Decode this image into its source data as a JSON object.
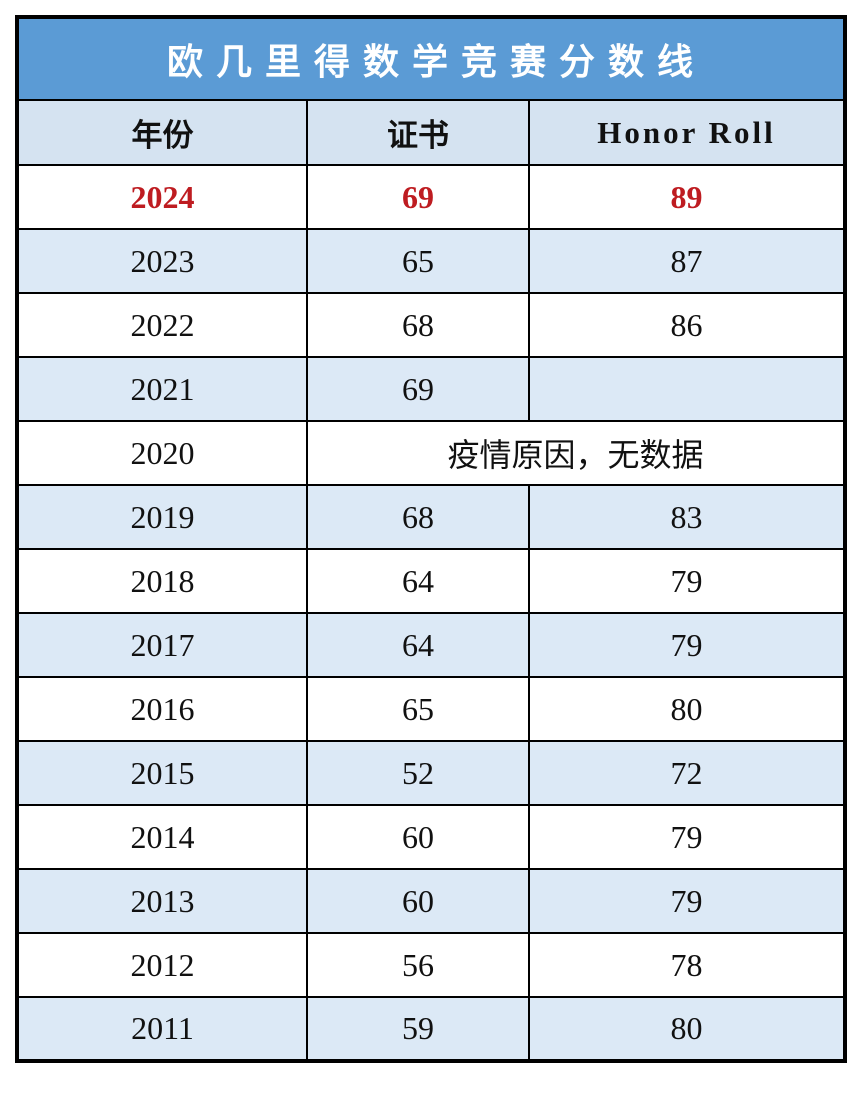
{
  "table": {
    "title": "欧 几 里 得 数 学 竞 赛 分 数 线",
    "columns": [
      "年份",
      "证书",
      "Honor Roll"
    ],
    "rows": [
      {
        "year": "2024",
        "certificate": "69",
        "honor_roll": "89",
        "highlight": true
      },
      {
        "year": "2023",
        "certificate": "65",
        "honor_roll": "87"
      },
      {
        "year": "2022",
        "certificate": "68",
        "honor_roll": "86"
      },
      {
        "year": "2021",
        "certificate": "69",
        "honor_roll": ""
      },
      {
        "year": "2020",
        "merged_note": "疫情原因，无数据"
      },
      {
        "year": "2019",
        "certificate": "68",
        "honor_roll": "83"
      },
      {
        "year": "2018",
        "certificate": "64",
        "honor_roll": "79"
      },
      {
        "year": "2017",
        "certificate": "64",
        "honor_roll": "79"
      },
      {
        "year": "2016",
        "certificate": "65",
        "honor_roll": "80"
      },
      {
        "year": "2015",
        "certificate": "52",
        "honor_roll": "72"
      },
      {
        "year": "2014",
        "certificate": "60",
        "honor_roll": "79"
      },
      {
        "year": "2013",
        "certificate": "60",
        "honor_roll": "79"
      },
      {
        "year": "2012",
        "certificate": "56",
        "honor_roll": "78"
      },
      {
        "year": "2011",
        "certificate": "59",
        "honor_roll": "80"
      }
    ],
    "colors": {
      "title_background": "#5B9BD5",
      "title_text": "#FFFFFF",
      "header_background": "#D5E3F1",
      "alt_row_background": "#DCE9F6",
      "row_background": "#FFFFFF",
      "highlight_text": "#BE1C21",
      "body_text": "#111111",
      "border": "#000000"
    }
  },
  "chart_data": {
    "type": "table",
    "title": "欧几里得数学竞赛分数线",
    "columns": [
      "年份",
      "证书",
      "Honor Roll"
    ],
    "rows": [
      [
        "2024",
        69,
        89
      ],
      [
        "2023",
        65,
        87
      ],
      [
        "2022",
        68,
        86
      ],
      [
        "2021",
        69,
        null
      ],
      [
        "2020",
        "疫情原因，无数据",
        "疫情原因，无数据"
      ],
      [
        "2019",
        68,
        83
      ],
      [
        "2018",
        64,
        79
      ],
      [
        "2017",
        64,
        79
      ],
      [
        "2016",
        65,
        80
      ],
      [
        "2015",
        52,
        72
      ],
      [
        "2014",
        60,
        79
      ],
      [
        "2013",
        60,
        79
      ],
      [
        "2012",
        56,
        78
      ],
      [
        "2011",
        59,
        80
      ]
    ],
    "notes": "2024 row highlighted in red bold; 2020 certificate/honor columns merged into one cell; rows alternate white and light blue"
  }
}
